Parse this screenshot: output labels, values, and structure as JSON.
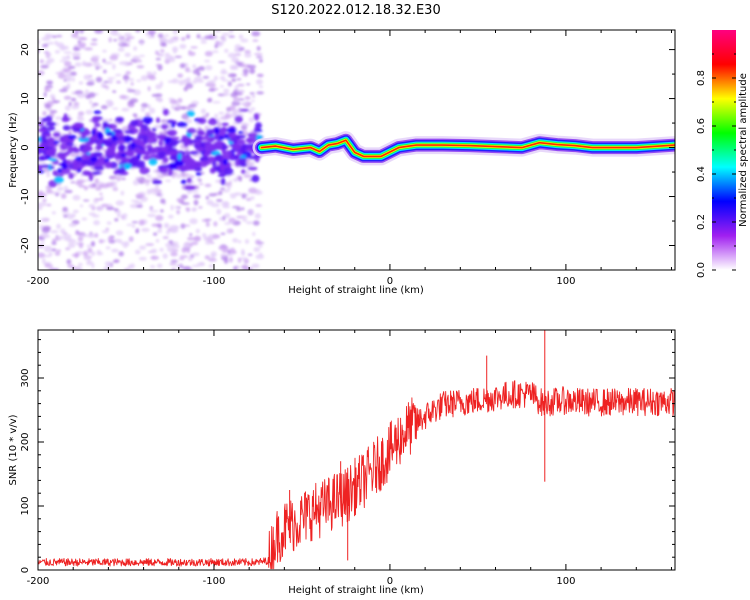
{
  "figure_title": "S120.2022.012.18.32.E30",
  "chart_data": [
    {
      "type": "heatmap",
      "title": "S120.2022.012.18.32.E30",
      "xlabel": "Height of straight line (km)",
      "ylabel": "Frequency (Hz)",
      "xlim": [
        -200,
        162
      ],
      "ylim": [
        -25,
        24
      ],
      "x_ticks": [
        -200,
        -100,
        0,
        100
      ],
      "x_tick_labels": [
        "-200",
        "-100",
        "0",
        "100"
      ],
      "y_ticks": [
        -20,
        -10,
        0,
        10,
        20
      ],
      "y_tick_labels": [
        "-20",
        "-10",
        "0",
        "10",
        "20"
      ],
      "noise_region_km": [
        -200,
        -73
      ],
      "ridge_path": [
        {
          "x": -73,
          "y": 0.0
        },
        {
          "x": -65,
          "y": 0.3
        },
        {
          "x": -55,
          "y": -0.4
        },
        {
          "x": -45,
          "y": 0.0
        },
        {
          "x": -40,
          "y": -0.8
        },
        {
          "x": -35,
          "y": 0.5
        },
        {
          "x": -30,
          "y": 0.8
        },
        {
          "x": -25,
          "y": 1.5
        },
        {
          "x": -20,
          "y": -1.0
        },
        {
          "x": -15,
          "y": -1.8
        },
        {
          "x": -5,
          "y": -1.8
        },
        {
          "x": 5,
          "y": 0.0
        },
        {
          "x": 15,
          "y": 0.5
        },
        {
          "x": 30,
          "y": 0.5
        },
        {
          "x": 45,
          "y": 0.4
        },
        {
          "x": 60,
          "y": 0.2
        },
        {
          "x": 75,
          "y": 0.0
        },
        {
          "x": 85,
          "y": 1.0
        },
        {
          "x": 95,
          "y": 0.6
        },
        {
          "x": 105,
          "y": 0.4
        },
        {
          "x": 115,
          "y": 0.0
        },
        {
          "x": 140,
          "y": 0.0
        },
        {
          "x": 162,
          "y": 0.5
        }
      ],
      "colorbar": {
        "label": "Normalized spectral amplitude",
        "range": [
          0,
          1
        ],
        "ticks": [
          0.0,
          0.2,
          0.4,
          0.6,
          0.8
        ],
        "tick_labels": [
          "0.0",
          "0.2",
          "0.4",
          "0.6",
          "0.8"
        ],
        "colors": [
          "#ffffff",
          "#a020f0",
          "#0000ff",
          "#00ffff",
          "#00ff00",
          "#ffff00",
          "#ff0000",
          "#ff007f"
        ]
      }
    },
    {
      "type": "line",
      "xlabel": "Height of straight line (km)",
      "ylabel": "SNR (10 * v/v)",
      "xlim": [
        -200,
        162
      ],
      "ylim": [
        0,
        375
      ],
      "x_ticks": [
        -200,
        -100,
        0,
        100
      ],
      "x_tick_labels": [
        "-200",
        "-100",
        "0",
        "100"
      ],
      "y_ticks": [
        0,
        100,
        200,
        300
      ],
      "y_tick_labels": [
        "0",
        "100",
        "200",
        "300"
      ],
      "color": "#ee2222",
      "series": [
        {
          "name": "SNR",
          "x": [
            -200,
            -185,
            -170,
            -150,
            -130,
            -110,
            -90,
            -75,
            -69,
            -65,
            -60,
            -55,
            -50,
            -45,
            -40,
            -35,
            -30,
            -25,
            -20,
            -15,
            -10,
            -5,
            0,
            5,
            10,
            15,
            20,
            25,
            30,
            40,
            50,
            60,
            70,
            80,
            87,
            90,
            100,
            110,
            120,
            130,
            140,
            150,
            162
          ],
          "values": [
            12,
            12,
            12,
            12,
            12,
            12,
            12,
            12,
            15,
            50,
            65,
            72,
            80,
            90,
            95,
            102,
            110,
            115,
            130,
            140,
            155,
            170,
            185,
            205,
            220,
            230,
            240,
            250,
            258,
            262,
            265,
            270,
            275,
            275,
            260,
            262,
            265,
            262,
            262,
            262,
            263,
            263,
            263
          ]
        }
      ],
      "spikes": [
        {
          "x": -57,
          "y": 125
        },
        {
          "x": -28,
          "y": 170
        },
        {
          "x": -24,
          "y": 15
        },
        {
          "x": 55,
          "y": 335
        },
        {
          "x": 88,
          "y": 378
        },
        {
          "x": 88,
          "y": 138
        }
      ]
    }
  ]
}
